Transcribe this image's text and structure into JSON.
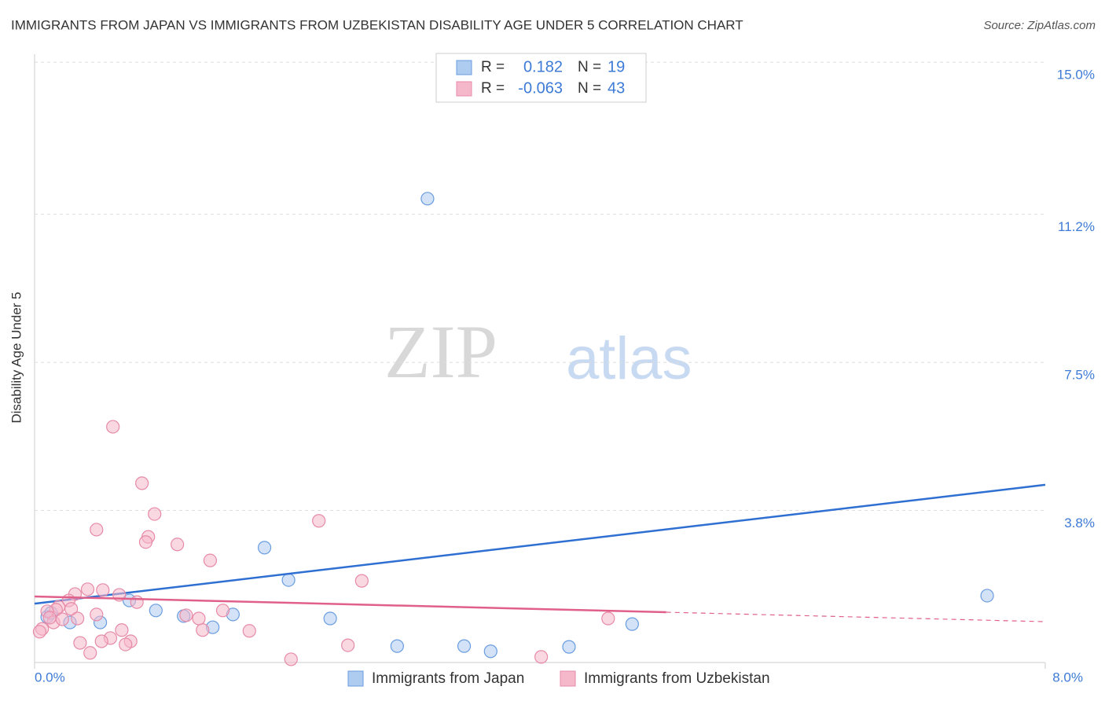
{
  "chart_data": {
    "type": "scatter",
    "title": "IMMIGRANTS FROM JAPAN VS IMMIGRANTS FROM UZBEKISTAN DISABILITY AGE UNDER 5 CORRELATION CHART",
    "source": "Source: ZipAtlas.com",
    "watermark": [
      "ZIP",
      "atlas"
    ],
    "y_label": "Disability Age Under 5",
    "xlim": [
      0,
      8
    ],
    "ylim": [
      0,
      15.2
    ],
    "xticks": [
      {
        "value": 0,
        "label": "0.0%"
      },
      {
        "value": 8,
        "label": "8.0%"
      }
    ],
    "yticks": [
      {
        "value": 3.8,
        "label": "3.8%"
      },
      {
        "value": 7.5,
        "label": "7.5%"
      },
      {
        "value": 11.2,
        "label": "11.2%"
      },
      {
        "value": 15,
        "label": "15.0%"
      }
    ],
    "grid": true,
    "stats_labels": {
      "r": "R =",
      "n": "N ="
    },
    "series": [
      {
        "name": "Immigrants from Japan",
        "color": "#6a9de0",
        "fill": "#aecbf0",
        "line_color": "#2f6fd1",
        "r": 0.182,
        "n": 19,
        "trend": {
          "x": [
            0,
            8
          ],
          "y": [
            1.47,
            4.44
          ]
        },
        "x": [
          3.11,
          1.82,
          2.01,
          7.54,
          0.75,
          0.96,
          1.18,
          1.57,
          2.34,
          0.52,
          0.28,
          1.41,
          4.73,
          2.87,
          3.4,
          3.61,
          4.23,
          0.1,
          0.13
        ],
        "values": [
          11.59,
          2.87,
          2.06,
          1.67,
          1.55,
          1.3,
          1.16,
          1.2,
          1.1,
          1.0,
          1.0,
          0.88,
          0.96,
          0.41,
          0.41,
          0.28,
          0.39,
          1.14,
          1.24
        ]
      },
      {
        "name": "Immigrants from Uzbekistan",
        "color": "#e68aa8",
        "fill": "#f5b8cb",
        "line_color": "#e0608a",
        "r": -0.063,
        "n": 43,
        "trend": {
          "x": [
            0,
            8
          ],
          "y": [
            1.65,
            1.02
          ],
          "dashed_from": 5
        },
        "x": [
          0.62,
          0.85,
          0.95,
          0.49,
          0.9,
          0.88,
          1.13,
          2.25,
          1.39,
          2.59,
          0.42,
          0.54,
          0.67,
          0.32,
          0.27,
          0.81,
          0.19,
          0.29,
          0.17,
          0.1,
          0.49,
          0.34,
          1.2,
          1.3,
          1.49,
          4.54,
          0.15,
          0.06,
          0.04,
          0.69,
          1.33,
          1.7,
          0.6,
          0.76,
          0.36,
          0.53,
          0.72,
          2.48,
          0.44,
          2.03,
          4.01,
          0.22,
          0.12
        ],
        "values": [
          5.89,
          4.48,
          3.71,
          3.32,
          3.14,
          3.01,
          2.95,
          3.54,
          2.55,
          2.04,
          1.83,
          1.81,
          1.69,
          1.71,
          1.55,
          1.51,
          1.39,
          1.34,
          1.32,
          1.28,
          1.2,
          1.1,
          1.18,
          1.1,
          1.3,
          1.1,
          1.0,
          0.84,
          0.77,
          0.81,
          0.81,
          0.79,
          0.61,
          0.53,
          0.49,
          0.53,
          0.45,
          0.43,
          0.24,
          0.08,
          0.14,
          1.08,
          1.12
        ]
      }
    ]
  }
}
